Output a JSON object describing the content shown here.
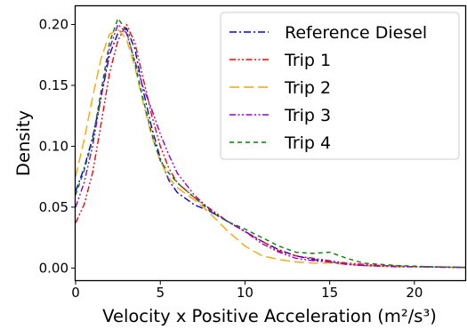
{
  "chart_data": {
    "type": "line",
    "title": "",
    "xlabel": "Velocity x Positive Acceleration (m²/s³)",
    "ylabel": "Density",
    "xlim": [
      0,
      23
    ],
    "ylim": [
      -0.01,
      0.215
    ],
    "x_ticks": [
      0,
      5,
      10,
      15,
      20
    ],
    "y_ticks": [
      0.0,
      0.05,
      0.1,
      0.15,
      0.2
    ],
    "x_tick_labels": [
      "0",
      "5",
      "10",
      "15",
      "20"
    ],
    "y_tick_labels": [
      "0.00",
      "0.05",
      "0.10",
      "0.15",
      "0.20"
    ],
    "grid": false,
    "legend_position": "top-right",
    "series": [
      {
        "name": "Reference Diesel",
        "color": "#0000ff",
        "dash": "dash-dot",
        "x": [
          0,
          0.5,
          1,
          1.5,
          2,
          2.5,
          3,
          3.5,
          4,
          4.5,
          5,
          5.5,
          6,
          7,
          8,
          9,
          10,
          11,
          12,
          13,
          14,
          15,
          16,
          17,
          18,
          19,
          20,
          21,
          22,
          23
        ],
        "y": [
          0.063,
          0.082,
          0.107,
          0.14,
          0.175,
          0.193,
          0.197,
          0.18,
          0.145,
          0.115,
          0.09,
          0.072,
          0.062,
          0.052,
          0.046,
          0.038,
          0.03,
          0.022,
          0.015,
          0.01,
          0.007,
          0.005,
          0.003,
          0.002,
          0.002,
          0.0015,
          0.001,
          0.001,
          0.0008,
          0.0005
        ]
      },
      {
        "name": "Trip 1",
        "color": "#ff0000",
        "dash": "dash-dot-dot",
        "x": [
          0,
          0.5,
          1,
          1.5,
          2,
          2.5,
          3,
          3.5,
          4,
          4.5,
          5,
          5.5,
          6,
          7,
          8,
          9,
          10,
          11,
          12,
          13,
          14,
          15,
          16,
          17,
          18,
          19,
          20,
          21,
          22,
          23
        ],
        "y": [
          0.037,
          0.052,
          0.078,
          0.118,
          0.16,
          0.187,
          0.2,
          0.185,
          0.155,
          0.125,
          0.1,
          0.082,
          0.07,
          0.058,
          0.048,
          0.038,
          0.03,
          0.022,
          0.014,
          0.01,
          0.008,
          0.006,
          0.004,
          0.003,
          0.002,
          0.0015,
          0.001,
          0.001,
          0.0008,
          0.0005
        ]
      },
      {
        "name": "Trip 2",
        "color": "#ffa500",
        "dash": "long-dash",
        "x": [
          0,
          0.5,
          1,
          1.5,
          2,
          2.5,
          3,
          3.5,
          4,
          4.5,
          5,
          5.5,
          6,
          7,
          8,
          9,
          10,
          11,
          12,
          13,
          14,
          15,
          16,
          17,
          18,
          19,
          20,
          21,
          22,
          23
        ],
        "y": [
          0.075,
          0.105,
          0.14,
          0.172,
          0.192,
          0.196,
          0.188,
          0.165,
          0.135,
          0.108,
          0.088,
          0.074,
          0.066,
          0.056,
          0.044,
          0.03,
          0.018,
          0.01,
          0.007,
          0.005,
          0.004,
          0.004,
          0.003,
          0.002,
          0.0015,
          0.001,
          0.001,
          0.0008,
          0.0005,
          0.0005
        ]
      },
      {
        "name": "Trip 3",
        "color": "#9400d3",
        "dash": "dash-dot-dot",
        "x": [
          0,
          0.5,
          1,
          1.5,
          2,
          2.5,
          3,
          3.5,
          4,
          4.5,
          5,
          5.5,
          6,
          7,
          8,
          9,
          10,
          11,
          12,
          13,
          14,
          15,
          16,
          17,
          18,
          19,
          20,
          21,
          22,
          23
        ],
        "y": [
          0.05,
          0.07,
          0.1,
          0.14,
          0.18,
          0.2,
          0.193,
          0.17,
          0.148,
          0.13,
          0.11,
          0.093,
          0.078,
          0.06,
          0.047,
          0.038,
          0.03,
          0.02,
          0.013,
          0.008,
          0.006,
          0.005,
          0.003,
          0.002,
          0.0015,
          0.001,
          0.001,
          0.0008,
          0.0005,
          0.0005
        ]
      },
      {
        "name": "Trip 4",
        "color": "#008000",
        "dash": "dashed",
        "x": [
          0,
          0.5,
          1,
          1.5,
          2,
          2.5,
          3,
          3.5,
          4,
          4.5,
          5,
          5.5,
          6,
          7,
          8,
          9,
          10,
          11,
          12,
          13,
          14,
          15,
          16,
          17,
          18,
          19,
          20,
          21,
          22,
          23
        ],
        "y": [
          0.06,
          0.08,
          0.105,
          0.145,
          0.185,
          0.205,
          0.195,
          0.168,
          0.138,
          0.11,
          0.088,
          0.078,
          0.07,
          0.058,
          0.046,
          0.038,
          0.032,
          0.025,
          0.018,
          0.013,
          0.012,
          0.013,
          0.008,
          0.004,
          0.003,
          0.002,
          0.0015,
          0.001,
          0.0008,
          0.0005
        ]
      }
    ]
  }
}
